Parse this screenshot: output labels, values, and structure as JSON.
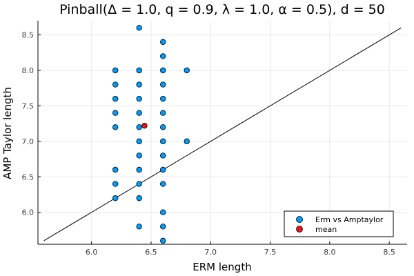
{
  "chart_data": {
    "type": "scatter",
    "title": "Pinball(Δ = 1.0, q = 0.9, λ = 1.0, α = 0.5), d = 50",
    "xlabel": "ERM length",
    "ylabel": "AMP Taylor length",
    "xlim": [
      5.55,
      8.65
    ],
    "ylim": [
      5.55,
      8.7
    ],
    "xticks": [
      6.0,
      6.5,
      7.0,
      7.5,
      8.0,
      8.5
    ],
    "yticks": [
      6.0,
      6.5,
      7.0,
      7.5,
      8.0,
      8.5
    ],
    "xtick_labels": [
      "6.0",
      "6.5",
      "7.0",
      "7.5",
      "8.0",
      "8.5"
    ],
    "ytick_labels": [
      "6.0",
      "6.5",
      "7.0",
      "7.5",
      "8.0",
      "8.5"
    ],
    "grid": true,
    "legend_position": "bottom-right",
    "reference_line": {
      "x": [
        5.6,
        8.6
      ],
      "y": [
        5.6,
        8.6
      ],
      "color": "#000000"
    },
    "series": [
      {
        "name": "Erm vs Amptaylor",
        "color": "#009AFA",
        "points": [
          [
            6.2,
            8.0
          ],
          [
            6.2,
            7.8
          ],
          [
            6.2,
            7.6
          ],
          [
            6.2,
            7.4
          ],
          [
            6.2,
            7.2
          ],
          [
            6.2,
            6.6
          ],
          [
            6.2,
            6.4
          ],
          [
            6.2,
            6.2
          ],
          [
            6.4,
            8.6
          ],
          [
            6.4,
            8.0
          ],
          [
            6.4,
            7.8
          ],
          [
            6.4,
            7.6
          ],
          [
            6.4,
            7.4
          ],
          [
            6.4,
            7.2
          ],
          [
            6.4,
            7.0
          ],
          [
            6.4,
            6.8
          ],
          [
            6.4,
            6.6
          ],
          [
            6.4,
            6.4
          ],
          [
            6.4,
            6.2
          ],
          [
            6.4,
            5.8
          ],
          [
            6.6,
            8.4
          ],
          [
            6.6,
            8.2
          ],
          [
            6.6,
            8.0
          ],
          [
            6.6,
            7.8
          ],
          [
            6.6,
            7.6
          ],
          [
            6.6,
            7.4
          ],
          [
            6.6,
            7.2
          ],
          [
            6.6,
            7.0
          ],
          [
            6.6,
            6.8
          ],
          [
            6.6,
            6.6
          ],
          [
            6.6,
            6.4
          ],
          [
            6.6,
            6.0
          ],
          [
            6.6,
            5.8
          ],
          [
            6.6,
            5.6
          ],
          [
            6.8,
            8.0
          ],
          [
            6.8,
            7.0
          ]
        ]
      },
      {
        "name": "mean",
        "color": "#E8161B",
        "points": [
          [
            6.445,
            7.22
          ]
        ]
      }
    ]
  }
}
